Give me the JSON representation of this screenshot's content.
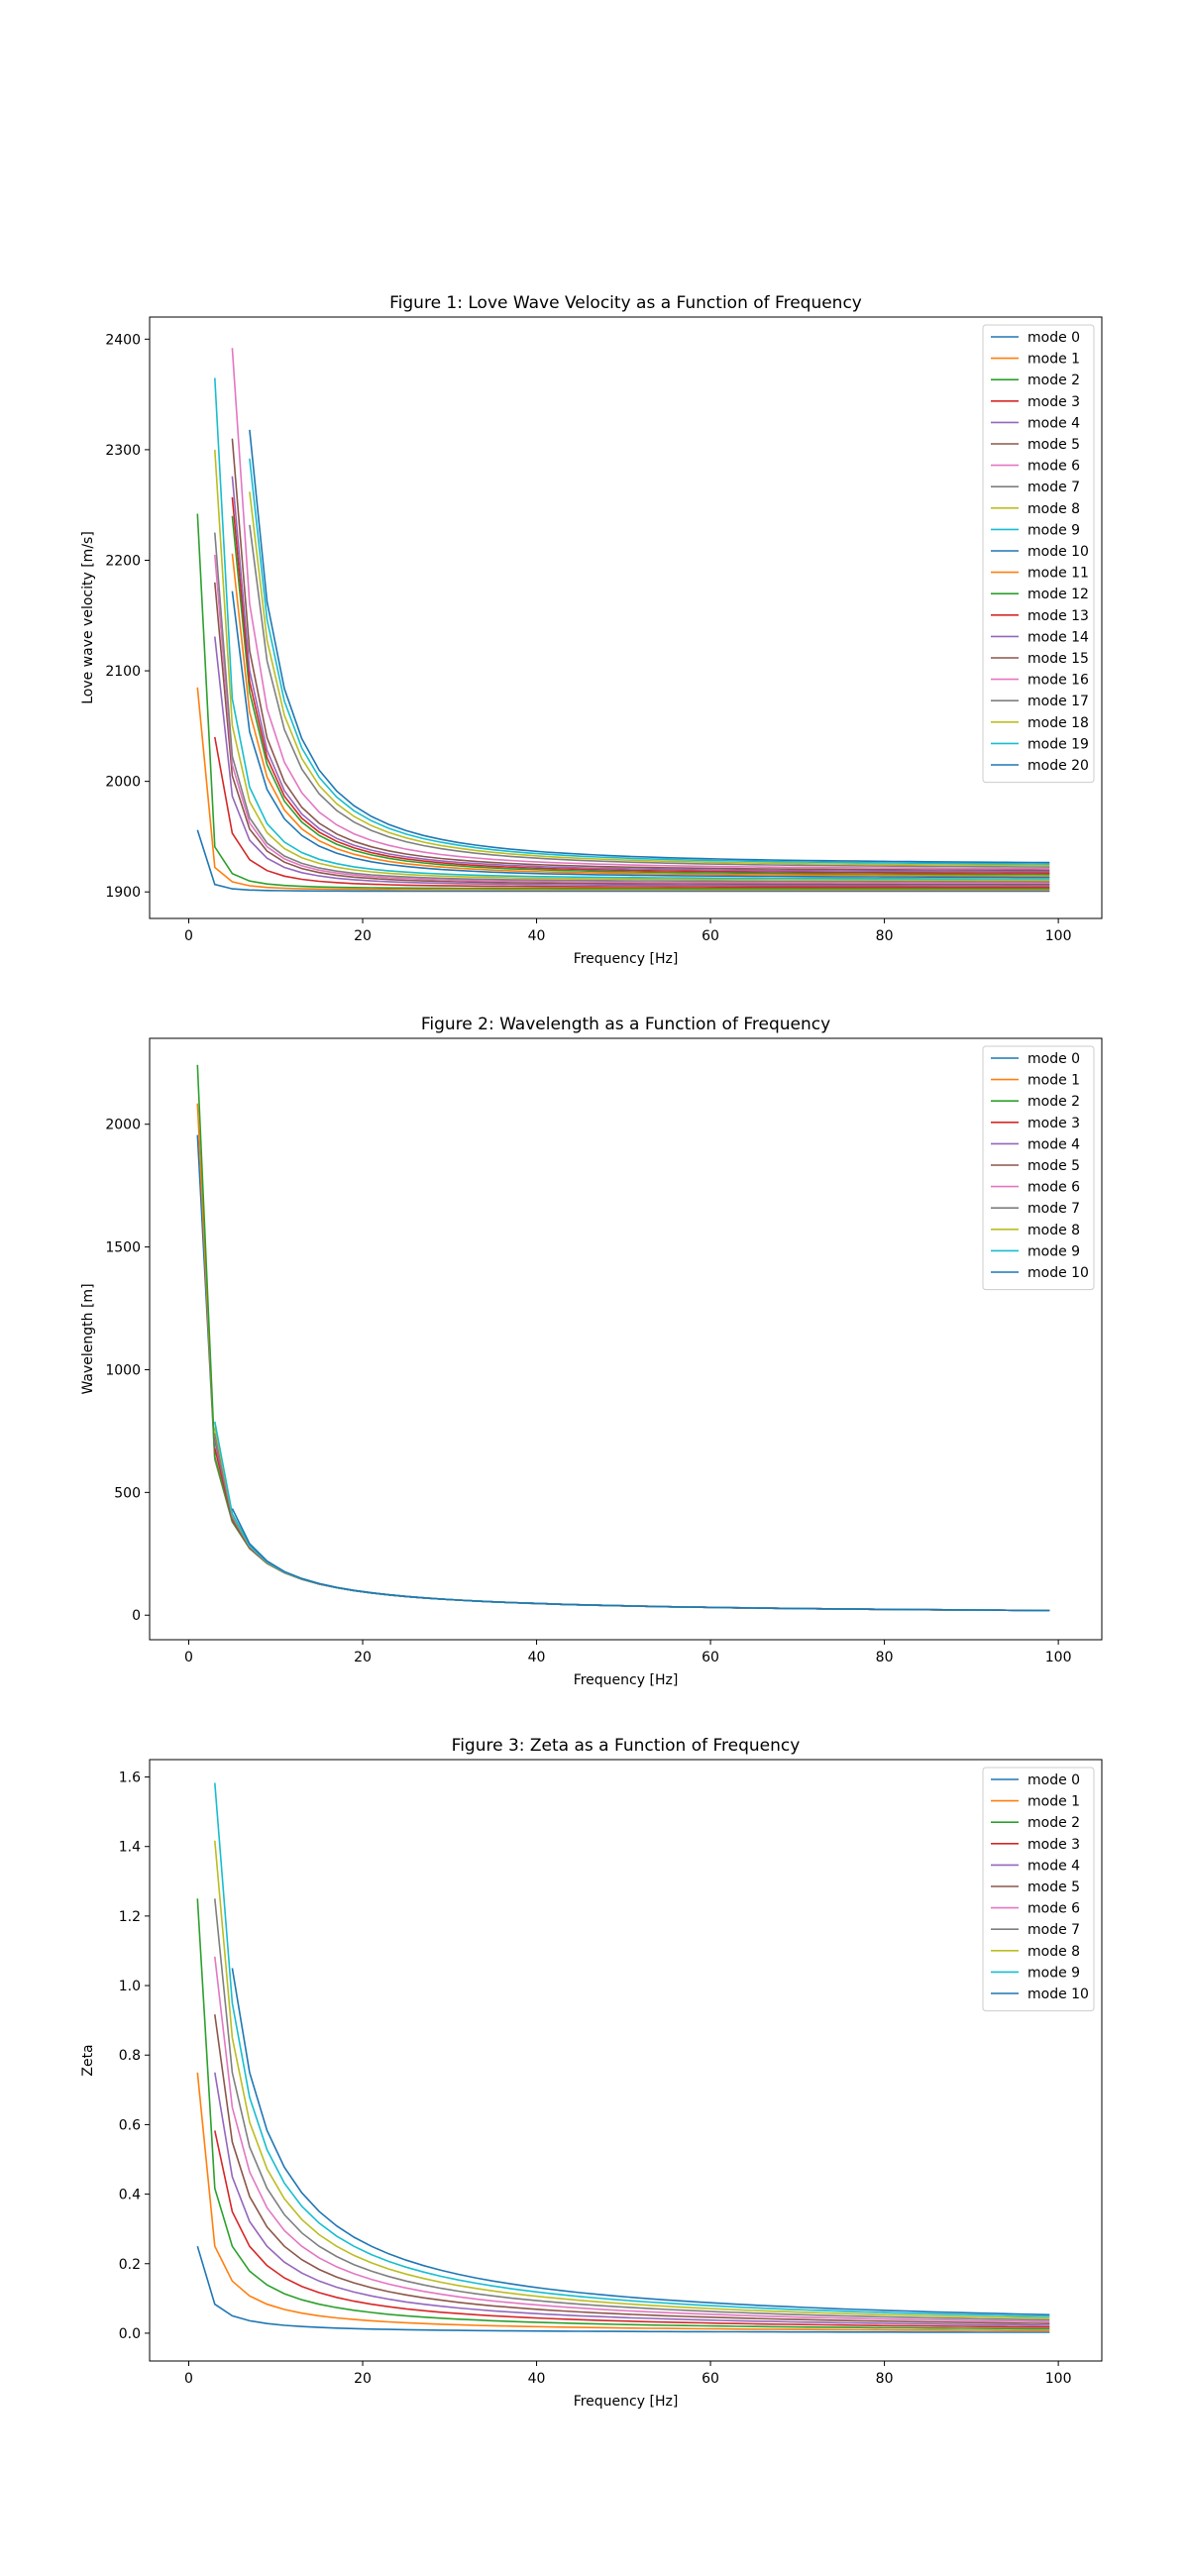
{
  "palette": [
    "#1f77b4",
    "#ff7f0e",
    "#2ca02c",
    "#d62728",
    "#9467bd",
    "#8c564b",
    "#e377c2",
    "#7f7f7f",
    "#bcbd22",
    "#17becf"
  ],
  "chart_data": [
    {
      "type": "line",
      "title": "Figure 1: Love Wave Velocity as a Function of Frequency",
      "xlabel": "Frequency [Hz]",
      "ylabel": "Love wave velocity [m/s]",
      "xlim": [
        -4.5,
        105
      ],
      "ylim": [
        1876,
        2420
      ],
      "xticks": [
        0,
        20,
        40,
        60,
        80,
        100
      ],
      "yticks": [
        1900,
        2000,
        2100,
        2200,
        2300,
        2400
      ],
      "legend": "top-right",
      "model": {
        "kind": "velocity",
        "x_max": 100,
        "x_step": 2,
        "asymptote": 1900,
        "offset_per_mode": 1.2,
        "cutoff_at": 2400
      },
      "series": [
        {
          "name": "mode 0",
          "f_start": 1,
          "v_start": 1956,
          "v_end": 1900.6
        },
        {
          "name": "mode 1",
          "f_start": 1,
          "v_start": 2085,
          "v_end": 1901.8
        },
        {
          "name": "mode 2",
          "f_start": 1,
          "v_start": 2242,
          "v_end": 1903.0
        },
        {
          "name": "mode 3",
          "f_start": 3,
          "v_start": 2040,
          "v_end": 1904.2
        },
        {
          "name": "mode 4",
          "f_start": 3,
          "v_start": 2131,
          "v_end": 1905.4
        },
        {
          "name": "mode 5",
          "f_start": 3,
          "v_start": 2180,
          "v_end": 1906.6
        },
        {
          "name": "mode 6",
          "f_start": 3,
          "v_start": 2205,
          "v_end": 1907.8
        },
        {
          "name": "mode 7",
          "f_start": 3,
          "v_start": 2225,
          "v_end": 1909.0
        },
        {
          "name": "mode 8",
          "f_start": 3,
          "v_start": 2300,
          "v_end": 1910.2
        },
        {
          "name": "mode 9",
          "f_start": 3,
          "v_start": 2365,
          "v_end": 1911.4
        },
        {
          "name": "mode 10",
          "f_start": 5,
          "v_start": 2172,
          "v_end": 1912.6
        },
        {
          "name": "mode 11",
          "f_start": 5,
          "v_start": 2206,
          "v_end": 1913.8
        },
        {
          "name": "mode 12",
          "f_start": 5,
          "v_start": 2240,
          "v_end": 1915.0
        },
        {
          "name": "mode 13",
          "f_start": 5,
          "v_start": 2257,
          "v_end": 1916.2
        },
        {
          "name": "mode 14",
          "f_start": 5,
          "v_start": 2276,
          "v_end": 1917.4
        },
        {
          "name": "mode 15",
          "f_start": 5,
          "v_start": 2310,
          "v_end": 1918.6
        },
        {
          "name": "mode 16",
          "f_start": 5,
          "v_start": 2392,
          "v_end": 1919.8
        },
        {
          "name": "mode 17",
          "f_start": 7,
          "v_start": 2232,
          "v_end": 1921.0
        },
        {
          "name": "mode 18",
          "f_start": 7,
          "v_start": 2262,
          "v_end": 1922.2
        },
        {
          "name": "mode 19",
          "f_start": 7,
          "v_start": 2292,
          "v_end": 1923.4
        },
        {
          "name": "mode 20",
          "f_start": 7,
          "v_start": 2318,
          "v_end": 1924.6
        }
      ]
    },
    {
      "type": "line",
      "title": "Figure 2: Wavelength as a Function of Frequency",
      "xlabel": "Frequency [Hz]",
      "ylabel": "Wavelength [m]",
      "xlim": [
        -4.5,
        105
      ],
      "ylim": [
        -100,
        2350
      ],
      "xticks": [
        0,
        20,
        40,
        60,
        80,
        100
      ],
      "yticks": [
        0,
        500,
        1000,
        1500,
        2000
      ],
      "legend": "top-right",
      "model": {
        "kind": "wavelength",
        "x_max": 100,
        "x_step": 2,
        "asymptote": 1900
      },
      "series": [
        {
          "name": "mode 0",
          "f_start": 1,
          "v_start": 1956
        },
        {
          "name": "mode 1",
          "f_start": 1,
          "v_start": 2085
        },
        {
          "name": "mode 2",
          "f_start": 1,
          "v_start": 2242
        },
        {
          "name": "mode 3",
          "f_start": 3,
          "v_start": 2040
        },
        {
          "name": "mode 4",
          "f_start": 3,
          "v_start": 2131
        },
        {
          "name": "mode 5",
          "f_start": 3,
          "v_start": 2180
        },
        {
          "name": "mode 6",
          "f_start": 3,
          "v_start": 2205
        },
        {
          "name": "mode 7",
          "f_start": 3,
          "v_start": 2225
        },
        {
          "name": "mode 8",
          "f_start": 3,
          "v_start": 2300
        },
        {
          "name": "mode 9",
          "f_start": 3,
          "v_start": 2365
        },
        {
          "name": "mode 10",
          "f_start": 5,
          "v_start": 2172
        }
      ]
    },
    {
      "type": "line",
      "title": "Figure 3: Zeta as a Function of Frequency",
      "xlabel": "Frequency [Hz]",
      "ylabel": "Zeta",
      "xlim": [
        -4.5,
        105
      ],
      "ylim": [
        -0.08,
        1.65
      ],
      "xticks": [
        0,
        20,
        40,
        60,
        80,
        100
      ],
      "yticks": [
        0.0,
        0.2,
        0.4,
        0.6,
        0.8,
        1.0,
        1.2,
        1.4,
        1.6
      ],
      "legend": "top-right",
      "model": {
        "kind": "zeta",
        "x_max": 100,
        "x_step": 2
      },
      "series": [
        {
          "name": "mode 0",
          "f_start": 1,
          "z_start": 0.25
        },
        {
          "name": "mode 1",
          "f_start": 1,
          "z_start": 0.75
        },
        {
          "name": "mode 2",
          "f_start": 1,
          "z_start": 1.25
        },
        {
          "name": "mode 3",
          "f_start": 3,
          "z_start": 0.583
        },
        {
          "name": "mode 4",
          "f_start": 3,
          "z_start": 0.75
        },
        {
          "name": "mode 5",
          "f_start": 3,
          "z_start": 0.917
        },
        {
          "name": "mode 6",
          "f_start": 3,
          "z_start": 1.083
        },
        {
          "name": "mode 7",
          "f_start": 3,
          "z_start": 1.25
        },
        {
          "name": "mode 8",
          "f_start": 3,
          "z_start": 1.417
        },
        {
          "name": "mode 9",
          "f_start": 3,
          "z_start": 1.583
        },
        {
          "name": "mode 10",
          "f_start": 5,
          "z_start": 1.05
        }
      ]
    }
  ]
}
